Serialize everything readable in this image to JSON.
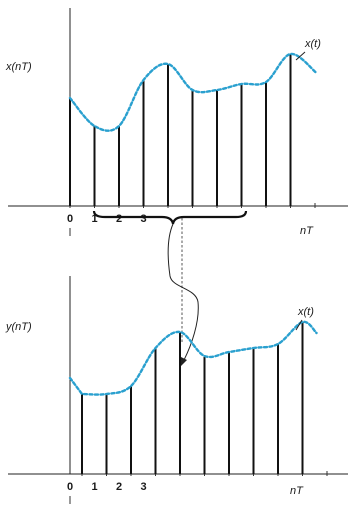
{
  "colors": {
    "curve": "#2aa0cf",
    "ink": "#111111"
  },
  "top_plot": {
    "ylabel": "x(nT)",
    "xlabel": "nT",
    "curve_label": "x(t)",
    "ticks": [
      "0",
      "1",
      "2",
      "3"
    ],
    "samples": [
      0.54,
      0.4,
      0.4,
      0.63,
      0.71,
      0.58,
      0.58,
      0.61,
      0.62,
      0.76
    ]
  },
  "bottom_plot": {
    "ylabel": "y(nT)",
    "xlabel": "nT",
    "curve_label": "x(t)",
    "ticks": [
      "0",
      "1",
      "2",
      "3"
    ],
    "samples": [
      0.4,
      0.4,
      0.44,
      0.63,
      0.71,
      0.59,
      0.61,
      0.63,
      0.65,
      0.76
    ]
  }
}
